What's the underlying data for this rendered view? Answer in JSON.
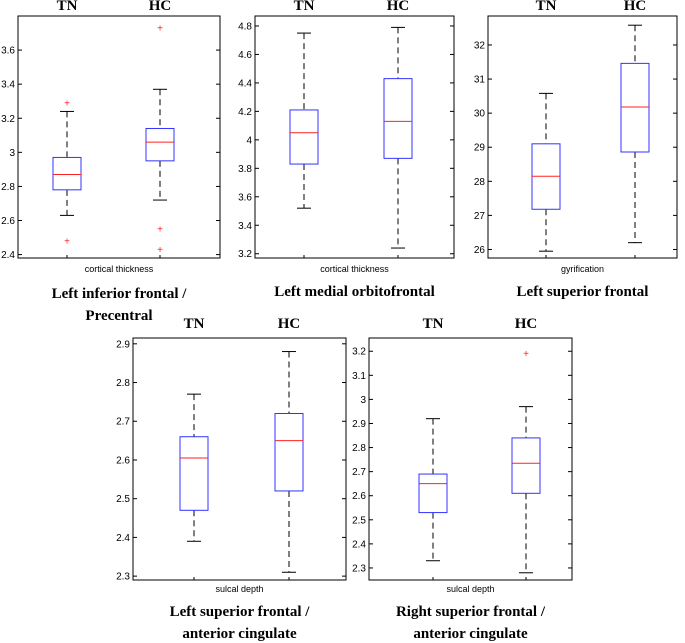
{
  "chart_data": [
    {
      "type": "box",
      "groups": [
        "TN",
        "HC"
      ],
      "xlabel": "cortical thickness",
      "caption": [
        "Left inferior frontal /",
        "Precentral"
      ],
      "ylim": [
        2.38,
        3.8
      ],
      "yticks": [
        2.4,
        2.6,
        2.8,
        3,
        3.2,
        3.4,
        3.6
      ],
      "ytick_labels": [
        "2.4",
        "2.6",
        "2.8",
        "3",
        "3.2",
        "3.4",
        "3.6"
      ],
      "series": [
        {
          "name": "TN",
          "whisker_low": 2.63,
          "q1": 2.78,
          "median": 2.87,
          "q3": 2.97,
          "whisker_high": 3.24,
          "outliers": [
            3.29,
            2.48
          ]
        },
        {
          "name": "HC",
          "whisker_low": 2.72,
          "q1": 2.95,
          "median": 3.06,
          "q3": 3.14,
          "whisker_high": 3.37,
          "outliers": [
            3.73,
            2.55,
            2.43
          ]
        }
      ]
    },
    {
      "type": "box",
      "groups": [
        "TN",
        "HC"
      ],
      "xlabel": "cortical thickness",
      "caption": [
        "Left medial orbitofrontal"
      ],
      "ylim": [
        3.17,
        4.87
      ],
      "yticks": [
        3.2,
        3.4,
        3.6,
        3.8,
        4,
        4.2,
        4.4,
        4.6,
        4.8
      ],
      "ytick_labels": [
        "3.2",
        "3.4",
        "3.6",
        "3.8",
        "4",
        "4.2",
        "4.4",
        "4.6",
        "4.8"
      ],
      "series": [
        {
          "name": "TN",
          "whisker_low": 3.52,
          "q1": 3.83,
          "median": 4.05,
          "q3": 4.21,
          "whisker_high": 4.75,
          "outliers": []
        },
        {
          "name": "HC",
          "whisker_low": 3.24,
          "q1": 3.87,
          "median": 4.13,
          "q3": 4.43,
          "whisker_high": 4.79,
          "outliers": []
        }
      ]
    },
    {
      "type": "box",
      "groups": [
        "TN",
        "HC"
      ],
      "xlabel": "gyrification",
      "caption": [
        "Left superior frontal"
      ],
      "ylim": [
        25.75,
        32.85
      ],
      "yticks": [
        26,
        27,
        28,
        29,
        30,
        31,
        32
      ],
      "ytick_labels": [
        "26",
        "27",
        "28",
        "29",
        "30",
        "31",
        "32"
      ],
      "series": [
        {
          "name": "TN",
          "whisker_low": 25.95,
          "q1": 27.18,
          "median": 28.15,
          "q3": 29.1,
          "whisker_high": 30.58,
          "outliers": []
        },
        {
          "name": "HC",
          "whisker_low": 26.2,
          "q1": 28.86,
          "median": 30.18,
          "q3": 31.46,
          "whisker_high": 32.58,
          "outliers": []
        }
      ]
    },
    {
      "type": "box",
      "groups": [
        "TN",
        "HC"
      ],
      "xlabel": "sulcal depth",
      "caption": [
        "Left superior frontal /",
        "anterior cingulate"
      ],
      "ylim": [
        2.29,
        2.915
      ],
      "yticks": [
        2.3,
        2.4,
        2.5,
        2.6,
        2.7,
        2.8,
        2.9
      ],
      "ytick_labels": [
        "2.3",
        "2.4",
        "2.5",
        "2.6",
        "2.7",
        "2.8",
        "2.9"
      ],
      "series": [
        {
          "name": "TN",
          "whisker_low": 2.39,
          "q1": 2.47,
          "median": 2.605,
          "q3": 2.66,
          "whisker_high": 2.77,
          "outliers": []
        },
        {
          "name": "HC",
          "whisker_low": 2.31,
          "q1": 2.52,
          "median": 2.65,
          "q3": 2.72,
          "whisker_high": 2.88,
          "outliers": []
        }
      ]
    },
    {
      "type": "box",
      "groups": [
        "TN",
        "HC"
      ],
      "xlabel": "sulcal depth",
      "caption": [
        "Right superior frontal /",
        "anterior cingulate"
      ],
      "ylim": [
        2.25,
        3.255
      ],
      "yticks": [
        2.3,
        2.4,
        2.5,
        2.6,
        2.7,
        2.8,
        2.9,
        3,
        3.1,
        3.2
      ],
      "ytick_labels": [
        "2.3",
        "2.4",
        "2.5",
        "2.6",
        "2.7",
        "2.8",
        "2.9",
        "3",
        "3.1",
        "3.2"
      ],
      "series": [
        {
          "name": "TN",
          "whisker_low": 2.33,
          "q1": 2.53,
          "median": 2.65,
          "q3": 2.69,
          "whisker_high": 2.92,
          "outliers": []
        },
        {
          "name": "HC",
          "whisker_low": 2.28,
          "q1": 2.61,
          "median": 2.735,
          "q3": 2.84,
          "whisker_high": 2.97,
          "outliers": [
            3.19
          ]
        }
      ]
    }
  ],
  "colors": {
    "box": "#3333ff",
    "median": "#ff2222",
    "outlier": "#ff2222",
    "whisker": "#000000"
  }
}
